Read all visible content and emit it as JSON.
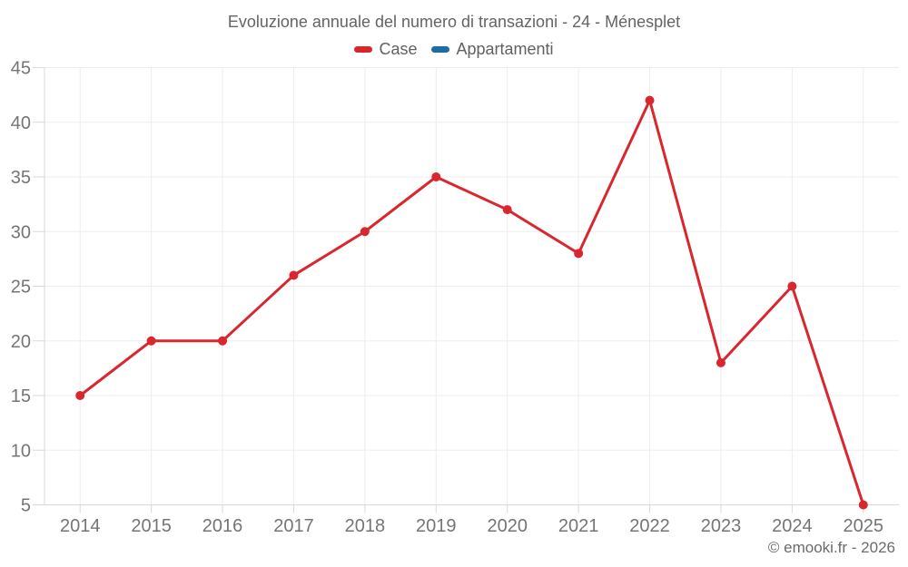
{
  "copyright": "© emooki.fr - 2026",
  "chart_data": {
    "type": "line",
    "title": "Evoluzione annuale del numero di transazioni - 24 - Ménesplet",
    "x": [
      "2014",
      "2015",
      "2016",
      "2017",
      "2018",
      "2019",
      "2020",
      "2021",
      "2022",
      "2023",
      "2024",
      "2025"
    ],
    "series": [
      {
        "name": "Case",
        "color": "#d8272e",
        "values": [
          15,
          20,
          20,
          26,
          30,
          35,
          32,
          28,
          42,
          18,
          25,
          5
        ]
      },
      {
        "name": "Appartamenti",
        "color": "#1a6ea5",
        "values": []
      }
    ],
    "ylim": [
      5,
      45
    ],
    "yticks": [
      5,
      10,
      15,
      20,
      25,
      30,
      35,
      40,
      45
    ],
    "grid": true,
    "legend_position": "top",
    "colors": {
      "grid_line": "#ededed",
      "axis_line": "#d9d9d9",
      "tick_label": "#757575",
      "title_text": "#646464"
    }
  }
}
